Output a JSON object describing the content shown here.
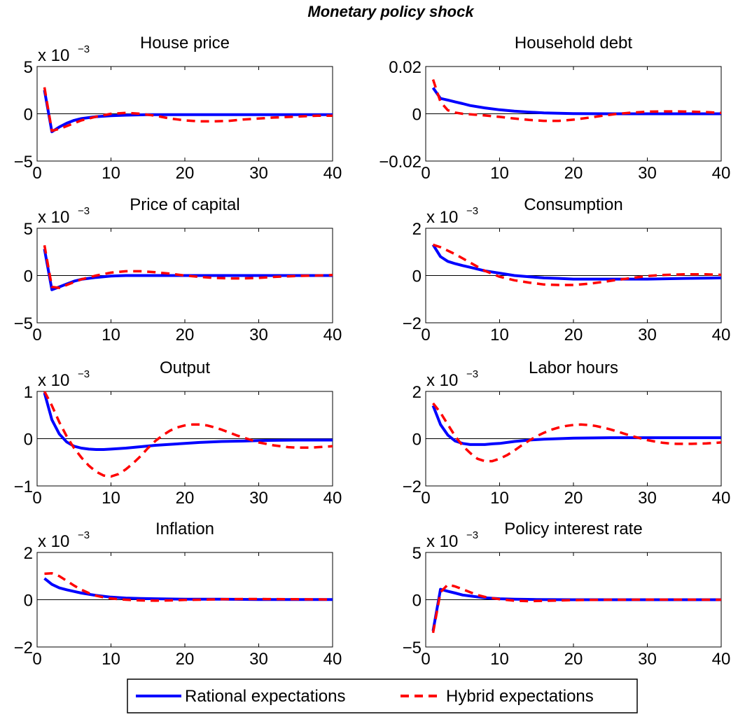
{
  "figure_title": "Monetary policy shock",
  "colors": {
    "rational": "#0000ff",
    "hybrid": "#ff0000",
    "zero_line": "#000000"
  },
  "legend": {
    "rational_label": "Rational expectations",
    "hybrid_label": "Hybrid expectations"
  },
  "chart_data": [
    {
      "type": "line",
      "title": "House price",
      "multiplier": "x 10",
      "multiplier_exp": "−3",
      "xlim": [
        0,
        40
      ],
      "ylim": [
        -5,
        5
      ],
      "xticks": [
        "0",
        "10",
        "20",
        "30",
        "40"
      ],
      "yticks": [
        "−5",
        "0",
        "5"
      ],
      "series": [
        {
          "name": "Rational expectations",
          "x": [
            1,
            2,
            3,
            4,
            5,
            6,
            8,
            10,
            12,
            15,
            20,
            25,
            30,
            35,
            40
          ],
          "y": [
            2.5,
            -1.9,
            -1.4,
            -1.0,
            -0.7,
            -0.5,
            -0.3,
            -0.2,
            -0.15,
            -0.1,
            -0.1,
            -0.1,
            -0.1,
            -0.1,
            -0.1
          ]
        },
        {
          "name": "Hybrid expectations",
          "x": [
            1,
            2,
            3,
            4,
            5,
            6,
            8,
            10,
            12,
            14,
            16,
            18,
            20,
            22,
            24,
            26,
            28,
            30,
            32,
            35,
            38,
            40
          ],
          "y": [
            2.8,
            -1.8,
            -1.6,
            -1.3,
            -1.0,
            -0.7,
            -0.3,
            0.0,
            0.1,
            0.0,
            -0.2,
            -0.5,
            -0.7,
            -0.8,
            -0.8,
            -0.75,
            -0.6,
            -0.5,
            -0.4,
            -0.3,
            -0.2,
            -0.2
          ]
        }
      ]
    },
    {
      "type": "line",
      "title": "Household debt",
      "multiplier": "",
      "multiplier_exp": "",
      "xlim": [
        0,
        40
      ],
      "ylim": [
        -0.02,
        0.02
      ],
      "xticks": [
        "0",
        "10",
        "20",
        "30",
        "40"
      ],
      "yticks": [
        "−0.02",
        "0",
        "0.02"
      ],
      "series": [
        {
          "name": "Rational expectations",
          "x": [
            1,
            2,
            3,
            4,
            5,
            6,
            8,
            10,
            12,
            14,
            16,
            18,
            20,
            25,
            30,
            35,
            40
          ],
          "y": [
            0.011,
            0.0065,
            0.0058,
            0.005,
            0.0043,
            0.0035,
            0.0025,
            0.0017,
            0.0011,
            0.0007,
            0.0004,
            0.0002,
            0.0001,
            0,
            0,
            0,
            0
          ]
        },
        {
          "name": "Hybrid expectations",
          "x": [
            1,
            2,
            3,
            4,
            5,
            6,
            8,
            10,
            12,
            14,
            16,
            18,
            20,
            22,
            24,
            26,
            28,
            30,
            32,
            34,
            36,
            38,
            40
          ],
          "y": [
            0.0145,
            0.005,
            0.0015,
            0.0005,
            0,
            -0.0002,
            -0.0007,
            -0.0013,
            -0.002,
            -0.0026,
            -0.003,
            -0.003,
            -0.0025,
            -0.0017,
            -0.0008,
            0,
            0.0005,
            0.0009,
            0.001,
            0.001,
            0.0009,
            0.0007,
            0.0004
          ]
        }
      ]
    },
    {
      "type": "line",
      "title": "Price of capital",
      "multiplier": "x 10",
      "multiplier_exp": "−3",
      "xlim": [
        0,
        40
      ],
      "ylim": [
        -5,
        5
      ],
      "xticks": [
        "0",
        "10",
        "20",
        "30",
        "40"
      ],
      "yticks": [
        "−5",
        "0",
        "5"
      ],
      "series": [
        {
          "name": "Rational expectations",
          "x": [
            1,
            2,
            3,
            4,
            5,
            6,
            8,
            10,
            12,
            15,
            20,
            25,
            30,
            35,
            40
          ],
          "y": [
            2.8,
            -1.5,
            -1.2,
            -0.9,
            -0.6,
            -0.4,
            -0.2,
            -0.05,
            0,
            0,
            0,
            0,
            0,
            0,
            0
          ]
        },
        {
          "name": "Hybrid expectations",
          "x": [
            1,
            2,
            3,
            4,
            5,
            6,
            8,
            10,
            12,
            14,
            16,
            18,
            20,
            22,
            24,
            26,
            28,
            30,
            32,
            35,
            38,
            40
          ],
          "y": [
            3.2,
            -1.2,
            -1.3,
            -1.0,
            -0.7,
            -0.4,
            0.0,
            0.3,
            0.45,
            0.45,
            0.35,
            0.2,
            0.0,
            -0.15,
            -0.25,
            -0.3,
            -0.3,
            -0.25,
            -0.15,
            -0.05,
            0.0,
            0.05
          ]
        }
      ]
    },
    {
      "type": "line",
      "title": "Consumption",
      "multiplier": "x 10",
      "multiplier_exp": "−3",
      "xlim": [
        0,
        40
      ],
      "ylim": [
        -2,
        2
      ],
      "xticks": [
        "0",
        "10",
        "20",
        "30",
        "40"
      ],
      "yticks": [
        "−2",
        "0",
        "2"
      ],
      "series": [
        {
          "name": "Rational expectations",
          "x": [
            1,
            2,
            3,
            4,
            5,
            6,
            8,
            10,
            12,
            14,
            16,
            18,
            20,
            22,
            25,
            30,
            35,
            40
          ],
          "y": [
            1.3,
            0.8,
            0.6,
            0.5,
            0.42,
            0.35,
            0.2,
            0.1,
            0.0,
            -0.05,
            -0.1,
            -0.12,
            -0.15,
            -0.15,
            -0.15,
            -0.15,
            -0.12,
            -0.1
          ]
        },
        {
          "name": "Hybrid expectations",
          "x": [
            1,
            2,
            4,
            6,
            8,
            10,
            12,
            14,
            16,
            18,
            20,
            22,
            24,
            26,
            28,
            30,
            32,
            35,
            38,
            40
          ],
          "y": [
            1.3,
            1.2,
            0.9,
            0.55,
            0.2,
            -0.05,
            -0.2,
            -0.3,
            -0.38,
            -0.4,
            -0.4,
            -0.35,
            -0.27,
            -0.18,
            -0.1,
            -0.02,
            0.02,
            0.05,
            0.05,
            0.03
          ]
        }
      ]
    },
    {
      "type": "line",
      "title": "Output",
      "multiplier": "x 10",
      "multiplier_exp": "−3",
      "xlim": [
        0,
        40
      ],
      "ylim": [
        -1,
        1
      ],
      "xticks": [
        "0",
        "10",
        "20",
        "30",
        "40"
      ],
      "yticks": [
        "−1",
        "0",
        "1"
      ],
      "series": [
        {
          "name": "Rational expectations",
          "x": [
            1,
            2,
            3,
            4,
            5,
            6,
            7,
            8,
            9,
            10,
            12,
            14,
            16,
            18,
            20,
            22,
            25,
            28,
            30,
            35,
            40
          ],
          "y": [
            0.97,
            0.4,
            0.1,
            -0.07,
            -0.16,
            -0.2,
            -0.22,
            -0.23,
            -0.23,
            -0.22,
            -0.2,
            -0.17,
            -0.14,
            -0.12,
            -0.1,
            -0.08,
            -0.06,
            -0.05,
            -0.04,
            -0.03,
            -0.03
          ]
        },
        {
          "name": "Hybrid expectations",
          "x": [
            1,
            2,
            3,
            4,
            5,
            6,
            7,
            8,
            9,
            10,
            11,
            12,
            13,
            14,
            15,
            16,
            17,
            18,
            19,
            20,
            21,
            22,
            23,
            24,
            25,
            26,
            27,
            28,
            29,
            30,
            31,
            32,
            33,
            34,
            35,
            36,
            37,
            38,
            39,
            40
          ],
          "y": [
            1.0,
            0.7,
            0.35,
            0.05,
            -0.2,
            -0.4,
            -0.57,
            -0.7,
            -0.78,
            -0.8,
            -0.75,
            -0.65,
            -0.52,
            -0.37,
            -0.2,
            -0.05,
            0.07,
            0.17,
            0.24,
            0.28,
            0.3,
            0.3,
            0.28,
            0.24,
            0.19,
            0.13,
            0.07,
            0.02,
            -0.03,
            -0.08,
            -0.11,
            -0.14,
            -0.16,
            -0.18,
            -0.19,
            -0.19,
            -0.19,
            -0.18,
            -0.17,
            -0.16
          ]
        }
      ]
    },
    {
      "type": "line",
      "title": "Labor hours",
      "multiplier": "x 10",
      "multiplier_exp": "−3",
      "xlim": [
        0,
        40
      ],
      "ylim": [
        -2,
        2
      ],
      "xticks": [
        "0",
        "10",
        "20",
        "30",
        "40"
      ],
      "yticks": [
        "−2",
        "0",
        "2"
      ],
      "series": [
        {
          "name": "Rational expectations",
          "x": [
            1,
            2,
            3,
            4,
            5,
            6,
            7,
            8,
            9,
            10,
            12,
            14,
            16,
            18,
            20,
            25,
            30,
            35,
            40
          ],
          "y": [
            1.4,
            0.6,
            0.15,
            -0.1,
            -0.2,
            -0.25,
            -0.25,
            -0.25,
            -0.22,
            -0.2,
            -0.12,
            -0.06,
            -0.02,
            0.0,
            0.02,
            0.04,
            0.04,
            0.04,
            0.04
          ]
        },
        {
          "name": "Hybrid expectations",
          "x": [
            1,
            2,
            3,
            4,
            5,
            6,
            7,
            8,
            9,
            10,
            11,
            12,
            13,
            14,
            15,
            16,
            17,
            18,
            19,
            20,
            21,
            22,
            23,
            24,
            25,
            26,
            27,
            28,
            29,
            30,
            31,
            32,
            33,
            34,
            35,
            36,
            37,
            38,
            39,
            40
          ],
          "y": [
            1.5,
            1.1,
            0.6,
            0.1,
            -0.3,
            -0.6,
            -0.85,
            -0.95,
            -0.95,
            -0.85,
            -0.7,
            -0.5,
            -0.28,
            -0.08,
            0.1,
            0.25,
            0.38,
            0.47,
            0.54,
            0.58,
            0.6,
            0.58,
            0.54,
            0.47,
            0.39,
            0.3,
            0.2,
            0.1,
            0.02,
            -0.06,
            -0.12,
            -0.17,
            -0.2,
            -0.22,
            -0.22,
            -0.22,
            -0.21,
            -0.2,
            -0.18,
            -0.16
          ]
        }
      ]
    },
    {
      "type": "line",
      "title": "Inflation",
      "multiplier": "x 10",
      "multiplier_exp": "−3",
      "xlim": [
        0,
        40
      ],
      "ylim": [
        -2,
        2
      ],
      "xticks": [
        "0",
        "10",
        "20",
        "30",
        "40"
      ],
      "yticks": [
        "−2",
        "0",
        "2"
      ],
      "series": [
        {
          "name": "Rational expectations",
          "x": [
            1,
            2,
            3,
            4,
            5,
            6,
            8,
            10,
            12,
            14,
            16,
            20,
            25,
            30,
            35,
            40
          ],
          "y": [
            0.9,
            0.65,
            0.5,
            0.42,
            0.35,
            0.28,
            0.18,
            0.11,
            0.07,
            0.05,
            0.04,
            0.02,
            0.02,
            0.01,
            0.01,
            0.01
          ]
        },
        {
          "name": "Hybrid expectations",
          "x": [
            1,
            2,
            3,
            4,
            5,
            6,
            7,
            8,
            9,
            10,
            12,
            14,
            16,
            18,
            20,
            22,
            25,
            28,
            30,
            35,
            40
          ],
          "y": [
            1.1,
            1.12,
            1.0,
            0.8,
            0.6,
            0.42,
            0.28,
            0.17,
            0.1,
            0.05,
            0.0,
            -0.03,
            -0.04,
            -0.03,
            -0.01,
            0.0,
            0.02,
            0.03,
            0.03,
            0.02,
            0.01
          ]
        }
      ]
    },
    {
      "type": "line",
      "title": "Policy interest rate",
      "multiplier": "x 10",
      "multiplier_exp": "−3",
      "xlim": [
        0,
        40
      ],
      "ylim": [
        -5,
        5
      ],
      "xticks": [
        "0",
        "10",
        "20",
        "30",
        "40"
      ],
      "yticks": [
        "−5",
        "0",
        "5"
      ],
      "series": [
        {
          "name": "Rational expectations",
          "x": [
            1,
            2,
            3,
            4,
            5,
            6,
            8,
            10,
            12,
            15,
            20,
            25,
            30,
            35,
            40
          ],
          "y": [
            -3.3,
            1.1,
            0.9,
            0.7,
            0.5,
            0.4,
            0.2,
            0.1,
            0.05,
            0.02,
            0,
            0,
            0,
            0,
            0
          ]
        },
        {
          "name": "Hybrid expectations",
          "x": [
            1,
            2,
            3,
            4,
            5,
            6,
            7,
            8,
            10,
            12,
            14,
            16,
            18,
            20,
            22,
            25,
            30,
            35,
            40
          ],
          "y": [
            -3.5,
            0.8,
            1.6,
            1.4,
            1.1,
            0.8,
            0.5,
            0.3,
            0.05,
            -0.1,
            -0.15,
            -0.12,
            -0.08,
            -0.04,
            -0.02,
            0,
            0.01,
            0.01,
            0
          ]
        }
      ]
    }
  ]
}
